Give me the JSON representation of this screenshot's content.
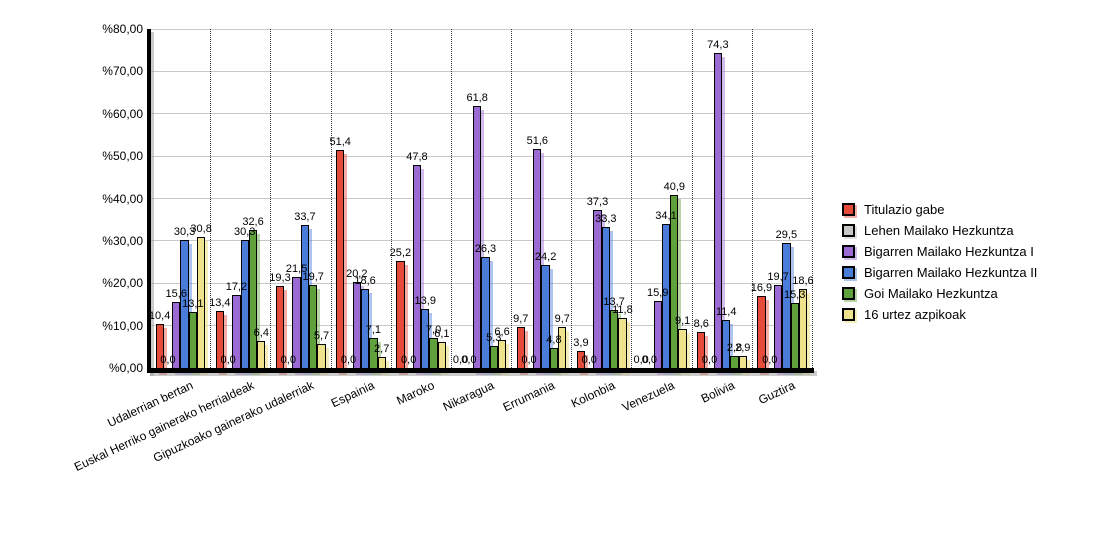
{
  "chart_data": {
    "type": "bar",
    "title": "",
    "categories": [
      "Udalerrian bertan",
      "Euskal Herriko gainerako herrialdeak",
      "Gipuzkoako gainerako udalerriak",
      "Espainia",
      "Maroko",
      "Nikaragua",
      "Errumania",
      "Kolonbia",
      "Venezuela",
      "Bolivia",
      "Guztira"
    ],
    "series": [
      {
        "name": "Titulazio gabe",
        "color": "#e64a3b",
        "shadow": "rgba(230,74,59,0.45)",
        "values": [
          10.4,
          13.4,
          19.3,
          51.4,
          25.2,
          0.0,
          9.7,
          3.9,
          0.0,
          8.6,
          16.9
        ]
      },
      {
        "name": "Lehen Mailako Hezkuntza",
        "color": "#c6c6c6",
        "shadow": "rgba(185,185,185,0.45)",
        "values": [
          0.0,
          0.0,
          0.0,
          0.0,
          0.0,
          0.0,
          0.0,
          0.0,
          0.0,
          0.0,
          0.0
        ]
      },
      {
        "name": "Bigarren Mailako Hezkuntza I",
        "color": "#9b6bd3",
        "shadow": "rgba(155,107,211,0.45)",
        "values": [
          15.6,
          17.2,
          21.5,
          20.2,
          47.8,
          61.8,
          51.6,
          37.3,
          15.9,
          74.3,
          19.7
        ]
      },
      {
        "name": "Bigarren Mailako Hezkuntza II",
        "color": "#4a7cd9",
        "shadow": "rgba(74,124,217,0.45)",
        "values": [
          30.3,
          30.3,
          33.7,
          18.6,
          13.9,
          26.3,
          24.2,
          33.3,
          34.1,
          11.4,
          29.5
        ]
      },
      {
        "name": "Goi Mailako Hezkuntza",
        "color": "#5fa23c",
        "shadow": "rgba(95,162,60,0.45)",
        "values": [
          13.1,
          32.6,
          19.7,
          7.1,
          7.0,
          5.3,
          4.8,
          13.7,
          40.9,
          2.8,
          15.3
        ]
      },
      {
        "name": "16 urtez azpikoak",
        "color": "#efe28c",
        "shadow": "rgba(239,226,140,0.6)",
        "values": [
          30.8,
          6.4,
          5.7,
          2.7,
          6.1,
          6.6,
          9.7,
          11.8,
          9.1,
          2.9,
          18.6
        ]
      }
    ],
    "y_axis": {
      "min": 0,
      "max": 80,
      "tick_step": 10,
      "tick_labels": [
        "%80,00",
        "%70,00",
        "%60,00",
        "%50,00",
        "%40,00",
        "%30,00",
        "%20,00",
        "%10,00",
        "%0,00"
      ]
    },
    "grid": true,
    "group_separators": "dotted",
    "legend_position": "right",
    "value_labels": true,
    "decimal_separator": ","
  }
}
